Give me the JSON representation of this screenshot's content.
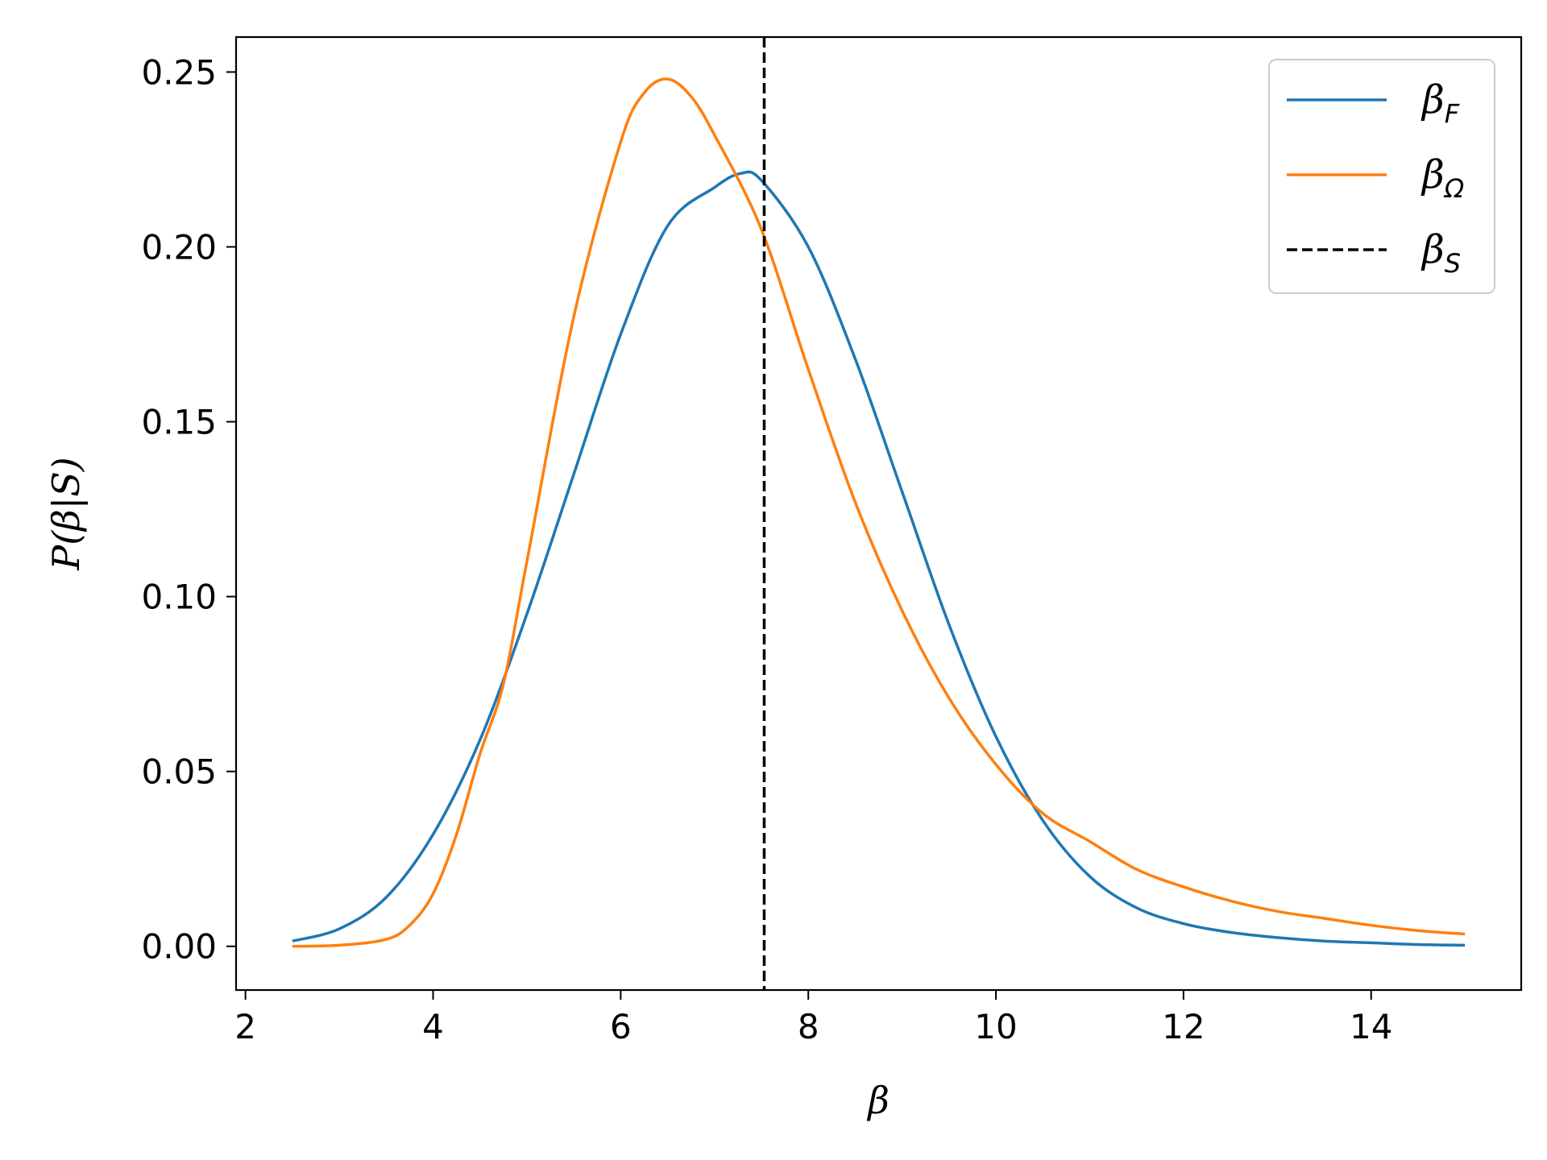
{
  "chart_data": {
    "type": "line",
    "xlabel": "β",
    "ylabel": "P(β|S)",
    "xlim": [
      1.9,
      15.6
    ],
    "ylim": [
      -0.0125,
      0.26
    ],
    "xticks": [
      2,
      4,
      6,
      8,
      10,
      12,
      14
    ],
    "xtick_labels": [
      "2",
      "4",
      "6",
      "8",
      "10",
      "12",
      "14"
    ],
    "yticks": [
      0.0,
      0.05,
      0.1,
      0.15,
      0.2,
      0.25
    ],
    "ytick_labels": [
      "0.00",
      "0.05",
      "0.10",
      "0.15",
      "0.20",
      "0.25"
    ],
    "grid": false,
    "legend_position": "top-right",
    "series": [
      {
        "name": "β_F",
        "legend_main": "β",
        "legend_sub": "F",
        "color": "#1f77b4",
        "style": "solid",
        "x": [
          2.5,
          3.0,
          3.5,
          4.0,
          4.5,
          5.0,
          5.5,
          6.0,
          6.5,
          7.0,
          7.28,
          7.5,
          8.0,
          8.5,
          9.0,
          9.5,
          10.0,
          10.5,
          11.0,
          11.5,
          12.0,
          12.5,
          13.0,
          13.5,
          14.0,
          14.5,
          15.0
        ],
        "y": [
          0.0015,
          0.005,
          0.014,
          0.032,
          0.059,
          0.095,
          0.135,
          0.175,
          0.206,
          0.217,
          0.221,
          0.219,
          0.2,
          0.168,
          0.13,
          0.092,
          0.06,
          0.036,
          0.02,
          0.011,
          0.0065,
          0.004,
          0.0025,
          0.0015,
          0.001,
          0.0005,
          0.0003
        ]
      },
      {
        "name": "β_Ω",
        "legend_main": "β",
        "legend_sub": "Ω",
        "color": "#ff7f0e",
        "style": "solid",
        "x": [
          2.5,
          3.0,
          3.5,
          3.75,
          4.0,
          4.25,
          4.5,
          4.75,
          5.0,
          5.5,
          6.0,
          6.25,
          6.5,
          6.75,
          7.0,
          7.5,
          8.0,
          8.5,
          9.0,
          9.5,
          10.0,
          10.5,
          11.0,
          11.5,
          12.0,
          12.5,
          13.0,
          13.5,
          14.0,
          14.5,
          15.0
        ],
        "y": [
          0.0,
          0.0003,
          0.002,
          0.006,
          0.015,
          0.032,
          0.055,
          0.075,
          0.11,
          0.18,
          0.23,
          0.244,
          0.248,
          0.243,
          0.232,
          0.205,
          0.165,
          0.127,
          0.096,
          0.071,
          0.052,
          0.038,
          0.03,
          0.022,
          0.017,
          0.013,
          0.01,
          0.008,
          0.006,
          0.0045,
          0.0035
        ]
      },
      {
        "name": "β_S",
        "legend_main": "β",
        "legend_sub": "S",
        "color": "#000000",
        "style": "dashed",
        "vline_x": 7.53
      }
    ]
  }
}
